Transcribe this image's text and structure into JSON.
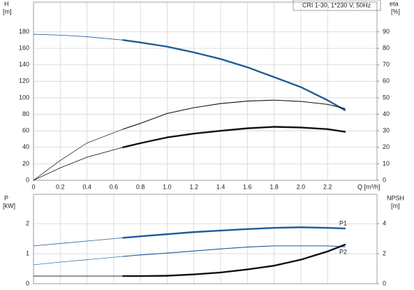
{
  "chart_data": [
    {
      "type": "line",
      "title": "CRI 1-30, 1*230 V, 50Hz",
      "ylabel": "H",
      "yunit": "[m]",
      "y2label": "eta",
      "y2unit": "[%]",
      "xlabel": "Q [m³/h]",
      "x": [
        0,
        0.2,
        0.4,
        0.67,
        0.8,
        1.0,
        1.2,
        1.4,
        1.6,
        1.8,
        2.0,
        2.2,
        2.33
      ],
      "xlim": [
        0,
        2.57
      ],
      "xticks": [
        0,
        0.2,
        0.4,
        0.6,
        0.8,
        {
          "value": 1,
          "label": "1.0"
        },
        1.2,
        1.4,
        1.6,
        1.8,
        {
          "value": 2,
          "label": "2.0"
        },
        2.2
      ],
      "ylim": [
        0,
        216
      ],
      "yticks": [
        0,
        20,
        40,
        60,
        80,
        100,
        120,
        140,
        160,
        180
      ],
      "y2lim": [
        0,
        108
      ],
      "y2ticks": [
        0,
        10,
        20,
        30,
        40,
        50,
        60,
        70,
        80,
        90
      ],
      "grid": true,
      "thick_from_x": 0.67,
      "series": [
        {
          "color": "#1f5c99",
          "values": [
            177,
            176,
            174,
            170,
            167,
            162,
            155,
            147,
            137,
            125,
            113,
            97,
            85
          ]
        },
        {
          "color": "#111111",
          "axis": "y2",
          "thin": true,
          "values": [
            0,
            12,
            22.6,
            31,
            34.5,
            40.5,
            44,
            46.5,
            48,
            48.6,
            47.8,
            46,
            43.5
          ]
        },
        {
          "color": "#111111",
          "axis": "y2",
          "values": [
            0,
            7.5,
            14,
            20,
            22.5,
            26,
            28.3,
            30,
            31.5,
            32.4,
            32,
            31,
            29.4
          ]
        }
      ]
    },
    {
      "type": "line",
      "ylabel": "P",
      "yunit": "[kW]",
      "y2label": "NPSH",
      "y2unit": "[m]",
      "x": [
        0,
        0.2,
        0.4,
        0.67,
        0.8,
        1.0,
        1.2,
        1.4,
        1.6,
        1.8,
        2.0,
        2.2,
        2.33
      ],
      "xlim": [
        0,
        2.57
      ],
      "ylim": [
        0,
        2.98
      ],
      "yticks": [
        0,
        1,
        2
      ],
      "y2lim": [
        0,
        5.96
      ],
      "y2ticks": [
        0,
        2,
        4
      ],
      "grid": true,
      "thick_from_x": 0.67,
      "series": [
        {
          "name": "P1",
          "color": "#1f5c99",
          "values": [
            1.26,
            1.34,
            1.42,
            1.53,
            1.58,
            1.65,
            1.72,
            1.77,
            1.82,
            1.86,
            1.88,
            1.86,
            1.84
          ]
        },
        {
          "name": "P2",
          "color": "#1f5c99",
          "thin": true,
          "values": [
            0.63,
            0.72,
            0.8,
            0.91,
            0.96,
            1.02,
            1.09,
            1.16,
            1.22,
            1.26,
            1.26,
            1.26,
            1.23
          ]
        },
        {
          "color": "#111111",
          "axis": "y2",
          "values": [
            0.51,
            0.51,
            0.51,
            0.51,
            0.51,
            0.53,
            0.62,
            0.75,
            0.95,
            1.2,
            1.6,
            2.15,
            2.6
          ]
        }
      ]
    }
  ]
}
